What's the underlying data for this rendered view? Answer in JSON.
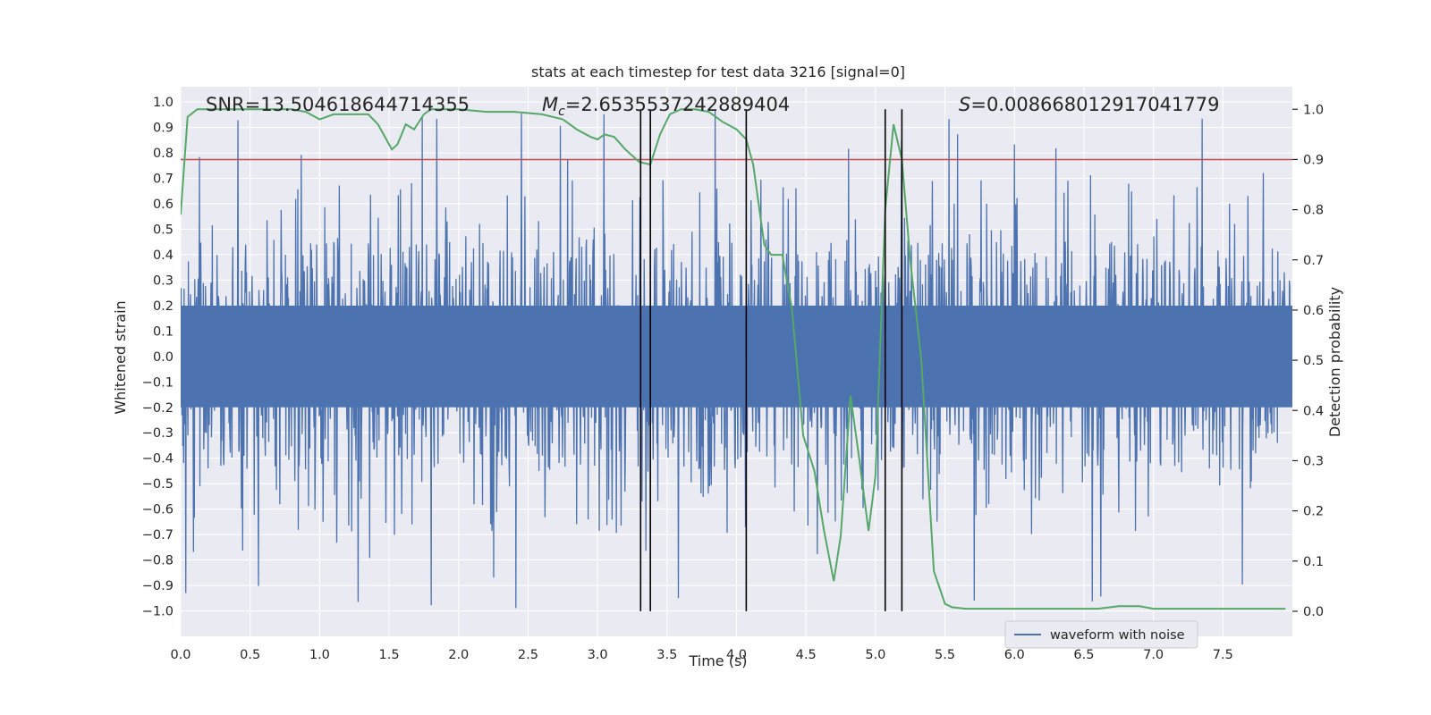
{
  "chart_data": {
    "type": "line",
    "title": "stats at each timestep for test data 3216 [signal=0]",
    "xlabel": "Time (s)",
    "ylabel_left": "Whitened strain",
    "ylabel_right": "Detection probability",
    "xlim": [
      0.0,
      8.0
    ],
    "ylim_left": [
      -1.1,
      1.06
    ],
    "ylim_right": [
      -0.05,
      1.045
    ],
    "x_ticks": [
      0.0,
      0.5,
      1.0,
      1.5,
      2.0,
      2.5,
      3.0,
      3.5,
      4.0,
      4.5,
      5.0,
      5.5,
      6.0,
      6.5,
      7.0,
      7.5
    ],
    "x_tick_labels": [
      "0.0",
      "0.5",
      "1.0",
      "1.5",
      "2.0",
      "2.5",
      "3.0",
      "3.5",
      "4.0",
      "4.5",
      "5.0",
      "5.5",
      "6.0",
      "6.5",
      "7.0",
      "7.5"
    ],
    "y_left_ticks": [
      1.0,
      0.9,
      0.8,
      0.7,
      0.6,
      0.5,
      0.4,
      0.3,
      0.2,
      0.1,
      0.0,
      -0.1,
      -0.2,
      -0.3,
      -0.4,
      -0.5,
      -0.6,
      -0.7,
      -0.8,
      -0.9,
      -1.0
    ],
    "y_left_tick_labels": [
      "1.0",
      "0.9",
      "0.8",
      "0.7",
      "0.6",
      "0.5",
      "0.4",
      "0.3",
      "0.2",
      "0.1",
      "0.0",
      "−0.1",
      "−0.2",
      "−0.3",
      "−0.4",
      "−0.5",
      "−0.6",
      "−0.7",
      "−0.8",
      "−0.9",
      "−1.0"
    ],
    "y_right_ticks": [
      1.0,
      0.9,
      0.8,
      0.7,
      0.6,
      0.5,
      0.4,
      0.3,
      0.2,
      0.1,
      0.0
    ],
    "y_right_tick_labels": [
      "1.0",
      "0.9",
      "0.8",
      "0.7",
      "0.6",
      "0.5",
      "0.4",
      "0.3",
      "0.2",
      "0.1",
      "0.0"
    ],
    "grid": true,
    "waveform": {
      "name": "waveform with noise",
      "color": "#4c72b0",
      "duration_s": 8.0,
      "core_amplitude": 0.2,
      "typical_peak": 0.45,
      "max_peak": 0.96,
      "min_trough": -0.99
    },
    "threshold": {
      "value_right": 0.9,
      "color": "#c44e52"
    },
    "vertical_markers_s": [
      3.31,
      3.38,
      4.07,
      5.07,
      5.19
    ],
    "marker_color": "#000000",
    "detection_probability": {
      "color": "#55a868",
      "x": [
        0.0,
        0.05,
        0.12,
        0.2,
        0.3,
        0.45,
        0.6,
        0.8,
        0.9,
        1.0,
        1.1,
        1.2,
        1.3,
        1.35,
        1.42,
        1.48,
        1.52,
        1.56,
        1.62,
        1.68,
        1.75,
        1.8,
        1.88,
        2.0,
        2.2,
        2.4,
        2.6,
        2.75,
        2.85,
        2.95,
        3.0,
        3.05,
        3.12,
        3.2,
        3.3,
        3.38,
        3.45,
        3.52,
        3.6,
        3.7,
        3.8,
        3.9,
        4.0,
        4.07,
        4.12,
        4.17,
        4.2,
        4.25,
        4.33,
        4.4,
        4.48,
        4.56,
        4.63,
        4.7,
        4.75,
        4.82,
        4.88,
        4.95,
        5.0,
        5.07,
        5.13,
        5.19,
        5.25,
        5.33,
        5.42,
        5.5,
        5.55,
        5.65,
        5.8,
        6.0,
        6.2,
        6.4,
        6.6,
        6.75,
        6.9,
        7.0,
        7.2,
        7.4,
        7.6,
        7.8,
        7.95
      ],
      "y": [
        0.79,
        0.985,
        1.0,
        1.0,
        1.0,
        1.0,
        1.0,
        1.0,
        0.995,
        0.98,
        0.99,
        0.99,
        0.99,
        0.99,
        0.97,
        0.94,
        0.92,
        0.93,
        0.97,
        0.96,
        0.99,
        1.0,
        1.0,
        1.0,
        0.995,
        0.995,
        0.99,
        0.98,
        0.96,
        0.945,
        0.94,
        0.95,
        0.945,
        0.92,
        0.895,
        0.89,
        0.95,
        0.99,
        1.0,
        1.0,
        0.995,
        0.975,
        0.96,
        0.94,
        0.89,
        0.79,
        0.73,
        0.71,
        0.71,
        0.6,
        0.35,
        0.28,
        0.16,
        0.06,
        0.15,
        0.43,
        0.31,
        0.16,
        0.27,
        0.8,
        0.97,
        0.9,
        0.7,
        0.5,
        0.08,
        0.015,
        0.008,
        0.005,
        0.005,
        0.005,
        0.005,
        0.005,
        0.005,
        0.01,
        0.01,
        0.005,
        0.005,
        0.005,
        0.005,
        0.005,
        0.005
      ]
    },
    "annotations": {
      "snr": "SNR=13.504618644714355",
      "mc_symbol": "M",
      "mc_sub": "c",
      "mc_value": "=2.6535537242889404",
      "s_symbol": "S",
      "s_value": "=0.008668012917041779"
    },
    "legend": {
      "label": "waveform with noise",
      "position": "lower-right"
    }
  }
}
